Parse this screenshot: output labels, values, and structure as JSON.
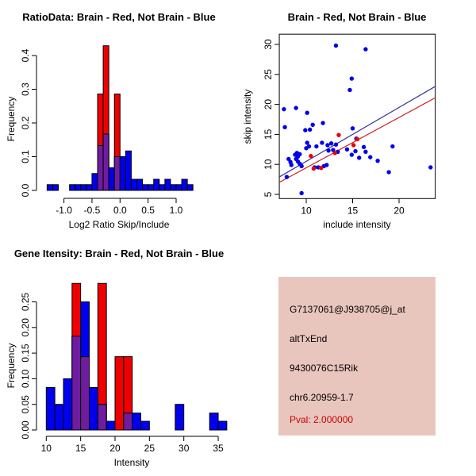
{
  "figure": {
    "background": "#FFFFFF"
  },
  "colors": {
    "blue": "#0000EE",
    "red": "#EE0000",
    "overlap_purple": "#701CA0",
    "bar_border": "#000000",
    "axis": "#000000",
    "scatter_blue_line": "#333399",
    "scatter_red_line": "#CC2222"
  },
  "chart_data": [
    {
      "id": "ratio-histogram",
      "type": "bar",
      "title": "RatioData: Brain - Red, Not Brain - Blue",
      "xlabel": "Log2 Ratio Skip/Include",
      "ylabel": "Frequency",
      "legend_note": "overlaid histograms: Brain red, Not Brain blue, overlap purple",
      "bin_start": -1.3,
      "bin_width": 0.1,
      "xlim": [
        -1.35,
        1.35
      ],
      "ylim": [
        0,
        0.43
      ],
      "x_tick_values": [
        -1.0,
        -0.5,
        0.0,
        0.5,
        1.0
      ],
      "x_tick_labels": [
        "-1.0",
        "-0.5",
        "0.0",
        "0.5",
        "1.0"
      ],
      "y_tick_values": [
        0.0,
        0.1,
        0.2,
        0.3,
        0.4
      ],
      "y_tick_labels": [
        "0.0",
        "0.1",
        "0.2",
        "0.3",
        "0.4"
      ],
      "series": [
        {
          "name": "Not Brain (blue)",
          "values": [
            0.017,
            0.017,
            0,
            0,
            0.017,
            0.017,
            0.017,
            0.017,
            0.05,
            0.133,
            0.167,
            0.067,
            0.1,
            0.1,
            0.117,
            0.033,
            0.033,
            0.017,
            0.017,
            0.033,
            0.017,
            0.033,
            0.017,
            0.017,
            0.033,
            0.017
          ]
        },
        {
          "name": "Brain (red)",
          "values": [
            0,
            0,
            0,
            0,
            0,
            0,
            0,
            0,
            0,
            0.286,
            0.429,
            0,
            0.286,
            0,
            0,
            0,
            0,
            0,
            0,
            0,
            0,
            0,
            0,
            0,
            0,
            0
          ]
        }
      ]
    },
    {
      "id": "skip-include-scatter",
      "type": "scatter",
      "title": "Brain - Red, Not Brain - Blue",
      "xlabel": "include intensity",
      "ylabel": "skip intensity",
      "xlim": [
        7.1,
        23.9
      ],
      "ylim": [
        4.3,
        31.7
      ],
      "x_tick_values": [
        10,
        15,
        20
      ],
      "x_tick_labels": [
        "10",
        "15",
        "20"
      ],
      "y_tick_values": [
        5,
        10,
        15,
        20,
        25,
        30
      ],
      "y_tick_labels": [
        "5",
        "10",
        "15",
        "20",
        "25",
        "30"
      ],
      "series": [
        {
          "name": "Not Brain (blue)",
          "points": [
            [
              13.2,
              29.8
            ],
            [
              16.4,
              29.2
            ],
            [
              14.9,
              24.3
            ],
            [
              14.7,
              22.4
            ],
            [
              7.6,
              19.2
            ],
            [
              8.9,
              19.4
            ],
            [
              10.1,
              18.6
            ],
            [
              7.7,
              16.2
            ],
            [
              11.8,
              16.9
            ],
            [
              10.7,
              16.6
            ],
            [
              10.4,
              15.8
            ],
            [
              9.9,
              15.7
            ],
            [
              15.0,
              16.0
            ],
            [
              15.4,
              14.3
            ],
            [
              10.1,
              13.6
            ],
            [
              10.3,
              13.0
            ],
            [
              10.0,
              12.7
            ],
            [
              11.1,
              13.0
            ],
            [
              11.7,
              13.6
            ],
            [
              12.3,
              13.2
            ],
            [
              12.7,
              13.5
            ],
            [
              13.2,
              13.3
            ],
            [
              12.4,
              12.3
            ],
            [
              12.9,
              12.4
            ],
            [
              13.4,
              12.1
            ],
            [
              14.4,
              12.5
            ],
            [
              15.3,
              12.2
            ],
            [
              14.9,
              11.6
            ],
            [
              15.7,
              11.1
            ],
            [
              8.8,
              11.6
            ],
            [
              9.0,
              11.9
            ],
            [
              9.3,
              11.7
            ],
            [
              9.1,
              11.3
            ],
            [
              8.9,
              10.9
            ],
            [
              9.1,
              10.5
            ],
            [
              9.3,
              10.1
            ],
            [
              9.5,
              9.7
            ],
            [
              8.1,
              10.9
            ],
            [
              8.3,
              10.4
            ],
            [
              8.4,
              9.9
            ],
            [
              10.9,
              9.5
            ],
            [
              11.3,
              9.5
            ],
            [
              11.9,
              9.7
            ],
            [
              12.2,
              9.9
            ],
            [
              7.9,
              7.9
            ],
            [
              9.5,
              5.2
            ],
            [
              16.2,
              12.9
            ],
            [
              16.4,
              12.1
            ],
            [
              16.9,
              11.2
            ],
            [
              19.3,
              13.0
            ],
            [
              17.7,
              10.6
            ],
            [
              18.9,
              8.7
            ],
            [
              23.4,
              9.5
            ]
          ]
        },
        {
          "name": "Brain (red)",
          "points": [
            [
              13.5,
              14.9
            ],
            [
              15.5,
              14.2
            ],
            [
              15.1,
              13.2
            ],
            [
              13.1,
              11.9
            ],
            [
              10.5,
              11.4
            ],
            [
              11.6,
              9.4
            ],
            [
              10.8,
              9.3
            ]
          ]
        }
      ],
      "fit_lines": [
        {
          "name": "blue fit line",
          "x1": 7.1,
          "y1": 7.9,
          "x2": 23.9,
          "y2": 23.0
        },
        {
          "name": "red fit line",
          "x1": 7.1,
          "y1": 7.0,
          "x2": 23.9,
          "y2": 21.1
        }
      ]
    },
    {
      "id": "gene-intensity-histogram",
      "type": "bar",
      "title": "Gene Itensity: Brain - Red, Not Brain - Blue",
      "xlabel": "Intensity",
      "ylabel": "Frequency",
      "legend_note": "overlaid histograms: Brain red, Not Brain blue, overlap purple",
      "bin_start": 10,
      "bin_width": 1.25,
      "xlim": [
        10,
        36.25
      ],
      "ylim": [
        0,
        0.29
      ],
      "x_tick_values": [
        10,
        15,
        20,
        25,
        30,
        35
      ],
      "x_tick_labels": [
        "10",
        "15",
        "20",
        "25",
        "30",
        "35"
      ],
      "y_tick_values": [
        0.0,
        0.05,
        0.1,
        0.15,
        0.2,
        0.25
      ],
      "y_tick_labels": [
        "0.00",
        "0.05",
        "0.10",
        "0.15",
        "0.20",
        "0.25"
      ],
      "series": [
        {
          "name": "Not Brain (blue)",
          "values": [
            0.083,
            0.05,
            0.1,
            0.183,
            0.25,
            0.083,
            0.05,
            0.017,
            0,
            0.033,
            0.033,
            0.017,
            0,
            0,
            0,
            0.05,
            0,
            0,
            0,
            0.033,
            0.017
          ]
        },
        {
          "name": "Brain (red)",
          "values": [
            0,
            0,
            0,
            0.286,
            0.143,
            0,
            0.286,
            0,
            0.143,
            0.143,
            0,
            0,
            0,
            0,
            0,
            0,
            0,
            0,
            0,
            0,
            0
          ]
        }
      ]
    }
  ],
  "info_panel": {
    "background": "#E9C6BD",
    "lines": [
      {
        "text": "G7137061@J938705@j_at",
        "color": "#000000"
      },
      {
        "text": "altTxEnd",
        "color": "#000000"
      },
      {
        "text": "9430076C15Rik",
        "color": "#000000"
      },
      {
        "text": "chr6.20959-1.7",
        "color": "#000000"
      },
      {
        "text": "Pval: 2.000000",
        "color": "#CC0000"
      }
    ]
  }
}
